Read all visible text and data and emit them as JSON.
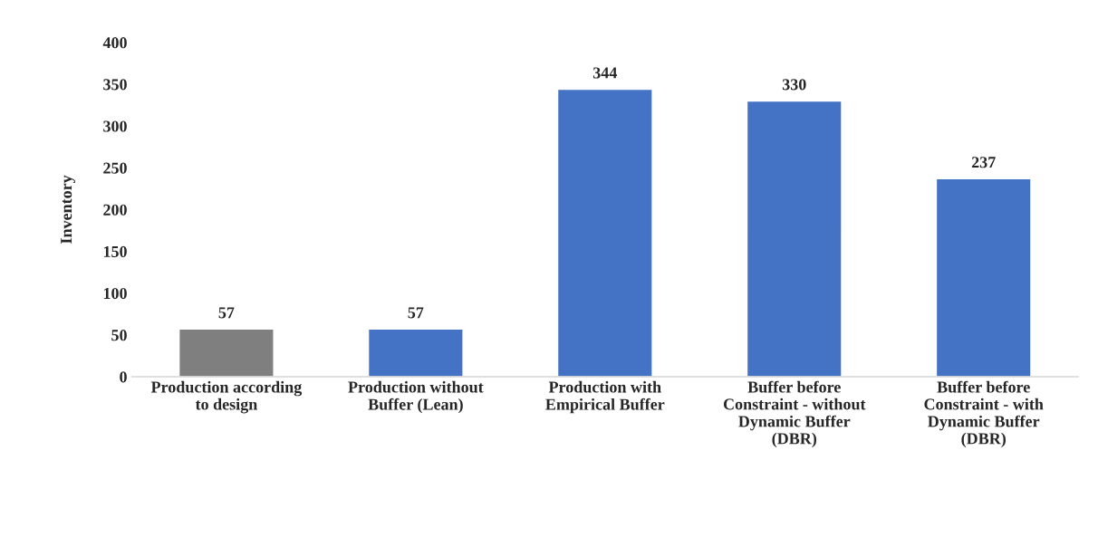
{
  "chart_data": {
    "type": "bar",
    "ylabel": "Inventory",
    "categories": [
      "Production according\nto design",
      "Production without\nBuffer (Lean)",
      "Production with\nEmpirical Buffer",
      "Buffer before\nConstraint - without\nDynamic Buffer\n(DBR)",
      "Buffer before\nConstraint - with\nDynamic Buffer\n(DBR)"
    ],
    "values": [
      57,
      57,
      344,
      330,
      237
    ],
    "colors": [
      "#7f7f7f",
      "#4472c4",
      "#4472c4",
      "#4472c4",
      "#4472c4"
    ],
    "ylim": [
      0,
      400
    ],
    "yticks": [
      0,
      50,
      100,
      150,
      200,
      250,
      300,
      350,
      400
    ],
    "data_labels": true,
    "grid": false,
    "legend": false
  }
}
